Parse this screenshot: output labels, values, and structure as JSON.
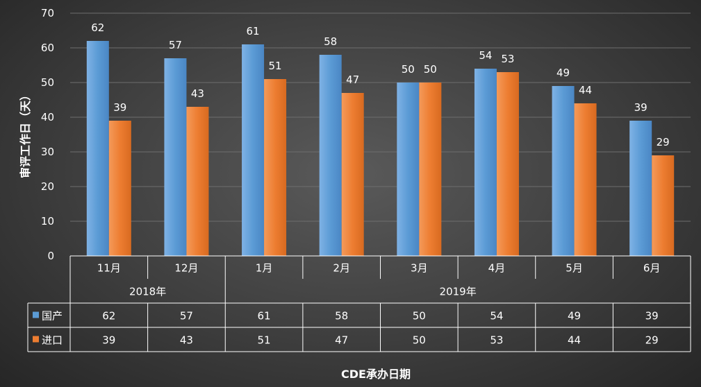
{
  "chart_data": {
    "type": "bar",
    "categories": [
      "11月",
      "12月",
      "1月",
      "2月",
      "3月",
      "4月",
      "5月",
      "6月"
    ],
    "year_groups": [
      {
        "label": "2018年",
        "span": 2
      },
      {
        "label": "2019年",
        "span": 6
      }
    ],
    "series": [
      {
        "name": "国产",
        "color": "#5b9bd5",
        "values": [
          62,
          57,
          61,
          58,
          50,
          54,
          49,
          39
        ]
      },
      {
        "name": "进口",
        "color": "#ed7d31",
        "values": [
          39,
          43,
          51,
          47,
          50,
          53,
          44,
          29
        ]
      }
    ],
    "ylabel": "审评工作日（天）",
    "xlabel": "CDE承办日期",
    "ylim": [
      0,
      70
    ],
    "yticks": [
      0,
      10,
      20,
      30,
      40,
      50,
      60,
      70
    ],
    "grid": true,
    "legend": "data-table"
  }
}
